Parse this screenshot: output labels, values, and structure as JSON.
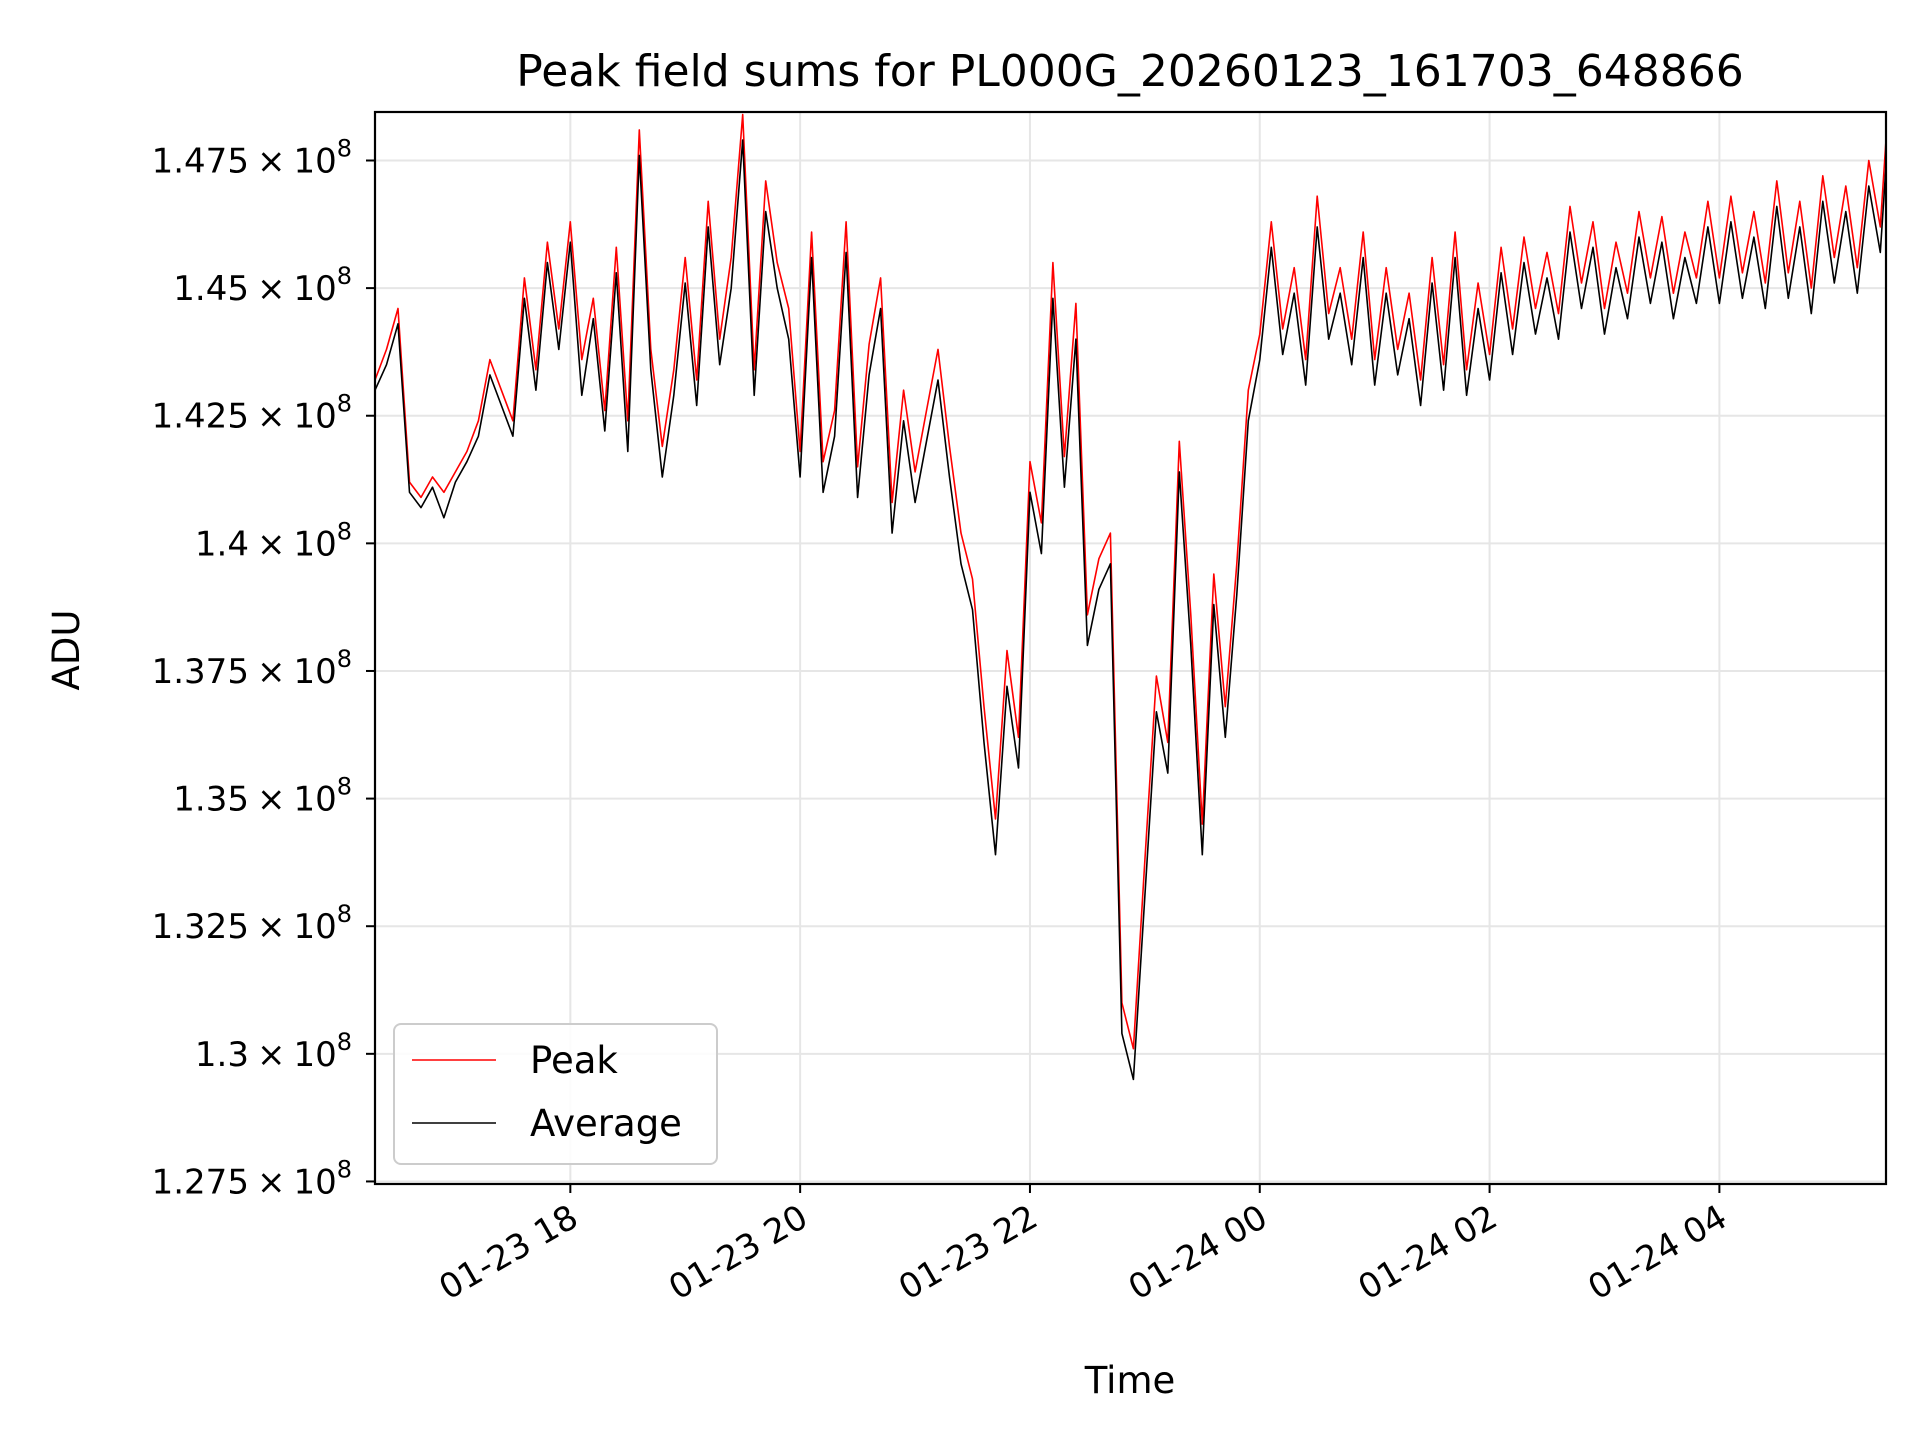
{
  "chart_data": {
    "type": "line",
    "title": "Peak field sums for PL000G_20260123_161703_648866",
    "xlabel": "Time",
    "ylabel": "ADU",
    "xlim_hours": [
      16.3,
      29.45
    ],
    "ylim": [
      127450000,
      148450000
    ],
    "grid": true,
    "legend_position": "lower-left",
    "x_ticks": [
      {
        "hours": 18,
        "label": "01-23 18"
      },
      {
        "hours": 20,
        "label": "01-23 20"
      },
      {
        "hours": 22,
        "label": "01-23 22"
      },
      {
        "hours": 24,
        "label": "01-24 00"
      },
      {
        "hours": 26,
        "label": "01-24 02"
      },
      {
        "hours": 28,
        "label": "01-24 04"
      }
    ],
    "y_ticks": [
      {
        "value": 127500000,
        "mantissa": "1.275",
        "exponent": "8"
      },
      {
        "value": 130000000,
        "mantissa": "1.3",
        "exponent": "8"
      },
      {
        "value": 132500000,
        "mantissa": "1.325",
        "exponent": "8"
      },
      {
        "value": 135000000,
        "mantissa": "1.35",
        "exponent": "8"
      },
      {
        "value": 137500000,
        "mantissa": "1.375",
        "exponent": "8"
      },
      {
        "value": 140000000,
        "mantissa": "1.4",
        "exponent": "8"
      },
      {
        "value": 142500000,
        "mantissa": "1.425",
        "exponent": "8"
      },
      {
        "value": 145000000,
        "mantissa": "1.45",
        "exponent": "8"
      },
      {
        "value": 147500000,
        "mantissa": "1.475",
        "exponent": "8"
      }
    ],
    "times_multiplier": "×",
    "exponent_base": "10",
    "series": [
      {
        "name": "Peak",
        "color": "#ff0000",
        "points": [
          [
            16.3,
            143.2
          ],
          [
            16.4,
            143.8
          ],
          [
            16.5,
            144.6
          ],
          [
            16.6,
            141.2
          ],
          [
            16.7,
            140.9
          ],
          [
            16.8,
            141.3
          ],
          [
            16.9,
            141.0
          ],
          [
            17.0,
            141.4
          ],
          [
            17.1,
            141.8
          ],
          [
            17.2,
            142.4
          ],
          [
            17.3,
            143.6
          ],
          [
            17.4,
            143.0
          ],
          [
            17.5,
            142.4
          ],
          [
            17.6,
            145.2
          ],
          [
            17.7,
            143.4
          ],
          [
            17.8,
            145.9
          ],
          [
            17.9,
            144.2
          ],
          [
            18.0,
            146.3
          ],
          [
            18.1,
            143.6
          ],
          [
            18.2,
            144.8
          ],
          [
            18.3,
            142.6
          ],
          [
            18.4,
            145.8
          ],
          [
            18.5,
            142.4
          ],
          [
            18.6,
            148.1
          ],
          [
            18.7,
            143.8
          ],
          [
            18.8,
            141.9
          ],
          [
            18.9,
            143.4
          ],
          [
            19.0,
            145.6
          ],
          [
            19.1,
            143.2
          ],
          [
            19.2,
            146.7
          ],
          [
            19.3,
            144.0
          ],
          [
            19.4,
            145.6
          ],
          [
            19.5,
            148.4
          ],
          [
            19.6,
            143.4
          ],
          [
            19.7,
            147.1
          ],
          [
            19.8,
            145.5
          ],
          [
            19.9,
            144.6
          ],
          [
            20.0,
            141.8
          ],
          [
            20.1,
            146.1
          ],
          [
            20.2,
            141.6
          ],
          [
            20.3,
            142.6
          ],
          [
            20.4,
            146.3
          ],
          [
            20.5,
            141.5
          ],
          [
            20.6,
            143.9
          ],
          [
            20.7,
            145.2
          ],
          [
            20.8,
            140.8
          ],
          [
            20.9,
            143.0
          ],
          [
            21.0,
            141.4
          ],
          [
            21.1,
            142.6
          ],
          [
            21.2,
            143.8
          ],
          [
            21.3,
            141.9
          ],
          [
            21.4,
            140.2
          ],
          [
            21.5,
            139.3
          ],
          [
            21.6,
            136.8
          ],
          [
            21.7,
            134.6
          ],
          [
            21.8,
            137.9
          ],
          [
            21.9,
            136.2
          ],
          [
            22.0,
            141.6
          ],
          [
            22.1,
            140.4
          ],
          [
            22.2,
            145.5
          ],
          [
            22.3,
            141.7
          ],
          [
            22.4,
            144.7
          ],
          [
            22.5,
            138.6
          ],
          [
            22.6,
            139.7
          ],
          [
            22.7,
            140.2
          ],
          [
            22.8,
            131.0
          ],
          [
            22.9,
            130.1
          ],
          [
            23.0,
            133.8
          ],
          [
            23.1,
            137.4
          ],
          [
            23.2,
            136.1
          ],
          [
            23.3,
            142.0
          ],
          [
            23.4,
            138.6
          ],
          [
            23.5,
            134.5
          ],
          [
            23.6,
            139.4
          ],
          [
            23.7,
            136.8
          ],
          [
            23.8,
            139.6
          ],
          [
            23.9,
            143.0
          ],
          [
            24.0,
            144.1
          ],
          [
            24.1,
            146.3
          ],
          [
            24.2,
            144.2
          ],
          [
            24.3,
            145.4
          ],
          [
            24.4,
            143.6
          ],
          [
            24.5,
            146.8
          ],
          [
            24.6,
            144.5
          ],
          [
            24.7,
            145.4
          ],
          [
            24.8,
            144.0
          ],
          [
            24.9,
            146.1
          ],
          [
            25.0,
            143.6
          ],
          [
            25.1,
            145.4
          ],
          [
            25.2,
            143.8
          ],
          [
            25.3,
            144.9
          ],
          [
            25.4,
            143.2
          ],
          [
            25.5,
            145.6
          ],
          [
            25.6,
            143.5
          ],
          [
            25.7,
            146.1
          ],
          [
            25.8,
            143.4
          ],
          [
            25.9,
            145.1
          ],
          [
            26.0,
            143.7
          ],
          [
            26.1,
            145.8
          ],
          [
            26.2,
            144.2
          ],
          [
            26.3,
            146.0
          ],
          [
            26.4,
            144.6
          ],
          [
            26.5,
            145.7
          ],
          [
            26.6,
            144.5
          ],
          [
            26.7,
            146.6
          ],
          [
            26.8,
            145.1
          ],
          [
            26.9,
            146.3
          ],
          [
            27.0,
            144.6
          ],
          [
            27.1,
            145.9
          ],
          [
            27.2,
            144.9
          ],
          [
            27.3,
            146.5
          ],
          [
            27.4,
            145.2
          ],
          [
            27.5,
            146.4
          ],
          [
            27.6,
            144.9
          ],
          [
            27.7,
            146.1
          ],
          [
            27.8,
            145.2
          ],
          [
            27.9,
            146.7
          ],
          [
            28.0,
            145.2
          ],
          [
            28.1,
            146.8
          ],
          [
            28.2,
            145.3
          ],
          [
            28.3,
            146.5
          ],
          [
            28.4,
            145.1
          ],
          [
            28.5,
            147.1
          ],
          [
            28.6,
            145.3
          ],
          [
            28.7,
            146.7
          ],
          [
            28.8,
            145.0
          ],
          [
            28.9,
            147.2
          ],
          [
            29.0,
            145.6
          ],
          [
            29.1,
            147.0
          ],
          [
            29.2,
            145.4
          ],
          [
            29.3,
            147.5
          ],
          [
            29.4,
            146.2
          ],
          [
            29.45,
            147.9
          ]
        ]
      },
      {
        "name": "Average",
        "color": "#000000",
        "points": [
          [
            16.3,
            143.0
          ],
          [
            16.4,
            143.5
          ],
          [
            16.5,
            144.3
          ],
          [
            16.6,
            141.0
          ],
          [
            16.7,
            140.7
          ],
          [
            16.8,
            141.1
          ],
          [
            16.9,
            140.5
          ],
          [
            17.0,
            141.2
          ],
          [
            17.1,
            141.6
          ],
          [
            17.2,
            142.1
          ],
          [
            17.3,
            143.3
          ],
          [
            17.4,
            142.7
          ],
          [
            17.5,
            142.1
          ],
          [
            17.6,
            144.8
          ],
          [
            17.7,
            143.0
          ],
          [
            17.8,
            145.5
          ],
          [
            17.9,
            143.8
          ],
          [
            18.0,
            145.9
          ],
          [
            18.1,
            142.9
          ],
          [
            18.2,
            144.4
          ],
          [
            18.3,
            142.2
          ],
          [
            18.4,
            145.3
          ],
          [
            18.5,
            141.8
          ],
          [
            18.6,
            147.6
          ],
          [
            18.7,
            143.4
          ],
          [
            18.8,
            141.3
          ],
          [
            18.9,
            142.9
          ],
          [
            19.0,
            145.1
          ],
          [
            19.1,
            142.7
          ],
          [
            19.2,
            146.2
          ],
          [
            19.3,
            143.5
          ],
          [
            19.4,
            145.0
          ],
          [
            19.5,
            147.9
          ],
          [
            19.6,
            142.9
          ],
          [
            19.7,
            146.5
          ],
          [
            19.8,
            145.0
          ],
          [
            19.9,
            144.0
          ],
          [
            20.0,
            141.3
          ],
          [
            20.1,
            145.6
          ],
          [
            20.2,
            141.0
          ],
          [
            20.3,
            142.1
          ],
          [
            20.4,
            145.7
          ],
          [
            20.5,
            140.9
          ],
          [
            20.6,
            143.3
          ],
          [
            20.7,
            144.6
          ],
          [
            20.8,
            140.2
          ],
          [
            20.9,
            142.4
          ],
          [
            21.0,
            140.8
          ],
          [
            21.1,
            142.0
          ],
          [
            21.2,
            143.2
          ],
          [
            21.3,
            141.3
          ],
          [
            21.4,
            139.6
          ],
          [
            21.5,
            138.7
          ],
          [
            21.6,
            136.1
          ],
          [
            21.7,
            133.9
          ],
          [
            21.8,
            137.2
          ],
          [
            21.9,
            135.6
          ],
          [
            22.0,
            141.0
          ],
          [
            22.1,
            139.8
          ],
          [
            22.2,
            144.8
          ],
          [
            22.3,
            141.1
          ],
          [
            22.4,
            144.0
          ],
          [
            22.5,
            138.0
          ],
          [
            22.6,
            139.1
          ],
          [
            22.7,
            139.6
          ],
          [
            22.8,
            130.4
          ],
          [
            22.9,
            129.5
          ],
          [
            23.0,
            133.1
          ],
          [
            23.1,
            136.7
          ],
          [
            23.2,
            135.5
          ],
          [
            23.3,
            141.4
          ],
          [
            23.4,
            138.0
          ],
          [
            23.5,
            133.9
          ],
          [
            23.6,
            138.8
          ],
          [
            23.7,
            136.2
          ],
          [
            23.8,
            139.0
          ],
          [
            23.9,
            142.4
          ],
          [
            24.0,
            143.6
          ],
          [
            24.1,
            145.8
          ],
          [
            24.2,
            143.7
          ],
          [
            24.3,
            144.9
          ],
          [
            24.4,
            143.1
          ],
          [
            24.5,
            146.2
          ],
          [
            24.6,
            144.0
          ],
          [
            24.7,
            144.9
          ],
          [
            24.8,
            143.5
          ],
          [
            24.9,
            145.6
          ],
          [
            25.0,
            143.1
          ],
          [
            25.1,
            144.9
          ],
          [
            25.2,
            143.3
          ],
          [
            25.3,
            144.4
          ],
          [
            25.4,
            142.7
          ],
          [
            25.5,
            145.1
          ],
          [
            25.6,
            143.0
          ],
          [
            25.7,
            145.6
          ],
          [
            25.8,
            142.9
          ],
          [
            25.9,
            144.6
          ],
          [
            26.0,
            143.2
          ],
          [
            26.1,
            145.3
          ],
          [
            26.2,
            143.7
          ],
          [
            26.3,
            145.5
          ],
          [
            26.4,
            144.1
          ],
          [
            26.5,
            145.2
          ],
          [
            26.6,
            144.0
          ],
          [
            26.7,
            146.1
          ],
          [
            26.8,
            144.6
          ],
          [
            26.9,
            145.8
          ],
          [
            27.0,
            144.1
          ],
          [
            27.1,
            145.4
          ],
          [
            27.2,
            144.4
          ],
          [
            27.3,
            146.0
          ],
          [
            27.4,
            144.7
          ],
          [
            27.5,
            145.9
          ],
          [
            27.6,
            144.4
          ],
          [
            27.7,
            145.6
          ],
          [
            27.8,
            144.7
          ],
          [
            27.9,
            146.2
          ],
          [
            28.0,
            144.7
          ],
          [
            28.1,
            146.3
          ],
          [
            28.2,
            144.8
          ],
          [
            28.3,
            146.0
          ],
          [
            28.4,
            144.6
          ],
          [
            28.5,
            146.6
          ],
          [
            28.6,
            144.8
          ],
          [
            28.7,
            146.2
          ],
          [
            28.8,
            144.5
          ],
          [
            28.9,
            146.7
          ],
          [
            29.0,
            145.1
          ],
          [
            29.1,
            146.5
          ],
          [
            29.2,
            144.9
          ],
          [
            29.3,
            147.0
          ],
          [
            29.4,
            145.7
          ],
          [
            29.45,
            147.4
          ]
        ]
      }
    ]
  }
}
